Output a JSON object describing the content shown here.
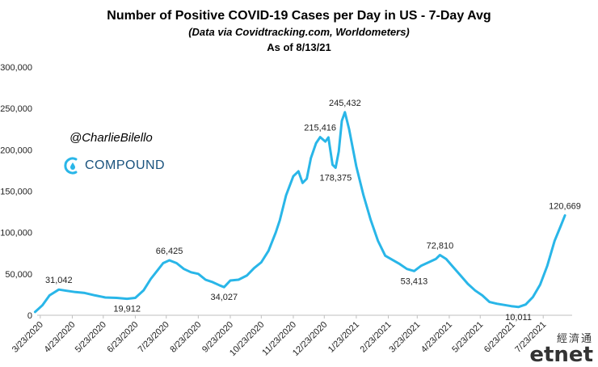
{
  "header": {
    "title": "Number of Positive COVID-19 Cases per Day in US - 7-Day Avg",
    "subtitle": "(Data via Covidtracking.com, Worldometers)",
    "as_of": "As of 8/13/21"
  },
  "branding": {
    "handle": "@CharlieBilello",
    "logo_text": "COMPOUND",
    "logo_color": "#19527d"
  },
  "watermark": {
    "chinese": "經濟通",
    "latin": "etnet"
  },
  "chart_data": {
    "type": "line",
    "title": "Number of Positive COVID-19 Cases per Day in US - 7-Day Avg",
    "xlabel": "",
    "ylabel": "",
    "ylim": [
      0,
      300000
    ],
    "y_ticks": [
      0,
      50000,
      100000,
      150000,
      200000,
      250000,
      300000
    ],
    "y_tick_labels": [
      "0",
      "50,000",
      "100,000",
      "150,000",
      "200,000",
      "250,000",
      "300,000"
    ],
    "x_ticks": [
      "2020-03-23",
      "2020-04-23",
      "2020-05-23",
      "2020-06-23",
      "2020-07-23",
      "2020-08-23",
      "2020-09-23",
      "2020-10-23",
      "2020-11-23",
      "2020-12-23",
      "2021-01-23",
      "2021-02-23",
      "2021-03-23",
      "2021-04-23",
      "2021-05-23",
      "2021-06-23",
      "2021-07-23"
    ],
    "x_tick_labels": [
      "3/23/2020",
      "4/23/2020",
      "5/23/2020",
      "6/23/2020",
      "7/23/2020",
      "8/23/2020",
      "9/23/2020",
      "10/23/2020",
      "11/23/2020",
      "12/23/2020",
      "1/23/2021",
      "2/23/2021",
      "3/23/2021",
      "4/23/2021",
      "5/23/2021",
      "6/23/2021",
      "7/23/2021"
    ],
    "grid": false,
    "legend": "none",
    "color": "#29b6e8",
    "series": [
      {
        "points": [
          [
            "2020-03-18",
            4000
          ],
          [
            "2020-03-25",
            12000
          ],
          [
            "2020-04-01",
            24000
          ],
          [
            "2020-04-10",
            31042
          ],
          [
            "2020-04-18",
            29500
          ],
          [
            "2020-04-26",
            28000
          ],
          [
            "2020-05-05",
            27000
          ],
          [
            "2020-05-15",
            24000
          ],
          [
            "2020-05-25",
            21500
          ],
          [
            "2020-06-05",
            21000
          ],
          [
            "2020-06-15",
            19912
          ],
          [
            "2020-06-23",
            21000
          ],
          [
            "2020-07-01",
            30000
          ],
          [
            "2020-07-08",
            44000
          ],
          [
            "2020-07-15",
            55000
          ],
          [
            "2020-07-20",
            63000
          ],
          [
            "2020-07-26",
            66425
          ],
          [
            "2020-08-02",
            63000
          ],
          [
            "2020-08-09",
            56000
          ],
          [
            "2020-08-16",
            52000
          ],
          [
            "2020-08-23",
            50000
          ],
          [
            "2020-08-30",
            43000
          ],
          [
            "2020-09-06",
            40000
          ],
          [
            "2020-09-13",
            36000
          ],
          [
            "2020-09-17",
            34027
          ],
          [
            "2020-09-23",
            42000
          ],
          [
            "2020-10-01",
            43000
          ],
          [
            "2020-10-09",
            48000
          ],
          [
            "2020-10-16",
            57000
          ],
          [
            "2020-10-23",
            64000
          ],
          [
            "2020-10-30",
            78000
          ],
          [
            "2020-11-06",
            100000
          ],
          [
            "2020-11-10",
            115000
          ],
          [
            "2020-11-16",
            145000
          ],
          [
            "2020-11-23",
            168000
          ],
          [
            "2020-11-28",
            174000
          ],
          [
            "2020-12-02",
            160000
          ],
          [
            "2020-12-06",
            165000
          ],
          [
            "2020-12-10",
            190000
          ],
          [
            "2020-12-15",
            208000
          ],
          [
            "2020-12-19",
            215416
          ],
          [
            "2020-12-24",
            210000
          ],
          [
            "2020-12-27",
            215000
          ],
          [
            "2020-12-31",
            182000
          ],
          [
            "2021-01-03",
            178375
          ],
          [
            "2021-01-06",
            198000
          ],
          [
            "2021-01-09",
            235000
          ],
          [
            "2021-01-12",
            245432
          ],
          [
            "2021-01-16",
            225000
          ],
          [
            "2021-01-23",
            180000
          ],
          [
            "2021-01-30",
            145000
          ],
          [
            "2021-02-06",
            115000
          ],
          [
            "2021-02-13",
            90000
          ],
          [
            "2021-02-20",
            72000
          ],
          [
            "2021-02-27",
            67000
          ],
          [
            "2021-03-06",
            62000
          ],
          [
            "2021-03-13",
            56000
          ],
          [
            "2021-03-20",
            53413
          ],
          [
            "2021-03-27",
            60000
          ],
          [
            "2021-04-03",
            64000
          ],
          [
            "2021-04-10",
            68000
          ],
          [
            "2021-04-14",
            72810
          ],
          [
            "2021-04-20",
            68000
          ],
          [
            "2021-04-27",
            58000
          ],
          [
            "2021-05-04",
            48000
          ],
          [
            "2021-05-11",
            38000
          ],
          [
            "2021-05-18",
            30000
          ],
          [
            "2021-05-25",
            24000
          ],
          [
            "2021-06-01",
            16000
          ],
          [
            "2021-06-08",
            14000
          ],
          [
            "2021-06-15",
            12500
          ],
          [
            "2021-06-22",
            11000
          ],
          [
            "2021-06-29",
            10011
          ],
          [
            "2021-07-06",
            13000
          ],
          [
            "2021-07-13",
            22000
          ],
          [
            "2021-07-20",
            37000
          ],
          [
            "2021-07-27",
            60000
          ],
          [
            "2021-08-03",
            90000
          ],
          [
            "2021-08-09",
            108000
          ],
          [
            "2021-08-13",
            120669
          ]
        ]
      }
    ],
    "annotations": [
      {
        "x": "2020-04-10",
        "y": 31042,
        "text": "31,042",
        "pos": "above"
      },
      {
        "x": "2020-06-15",
        "y": 19912,
        "text": "19,912",
        "pos": "below"
      },
      {
        "x": "2020-07-26",
        "y": 66425,
        "text": "66,425",
        "pos": "above"
      },
      {
        "x": "2020-09-17",
        "y": 34027,
        "text": "34,027",
        "pos": "below"
      },
      {
        "x": "2020-12-19",
        "y": 215416,
        "text": "215,416",
        "pos": "above"
      },
      {
        "x": "2021-01-03",
        "y": 178375,
        "text": "178,375",
        "pos": "below"
      },
      {
        "x": "2021-01-12",
        "y": 245432,
        "text": "245,432",
        "pos": "above"
      },
      {
        "x": "2021-03-20",
        "y": 53413,
        "text": "53,413",
        "pos": "below"
      },
      {
        "x": "2021-04-14",
        "y": 72810,
        "text": "72,810",
        "pos": "above"
      },
      {
        "x": "2021-06-29",
        "y": 10011,
        "text": "10,011",
        "pos": "below"
      },
      {
        "x": "2021-08-13",
        "y": 120669,
        "text": "120,669",
        "pos": "above"
      }
    ]
  }
}
